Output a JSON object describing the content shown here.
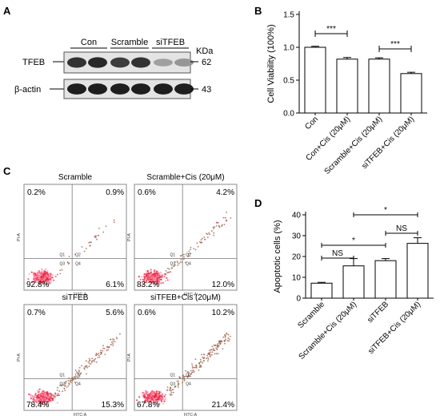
{
  "panel_labels": {
    "a": "A",
    "b": "B",
    "c": "C",
    "d": "D"
  },
  "western_blot": {
    "groups": [
      "Con",
      "Scramble",
      "siTFEB"
    ],
    "unit_label": "KDa",
    "proteins": [
      {
        "name": "TFEB",
        "kda": "62",
        "intensities": [
          0.85,
          0.9,
          0.8,
          0.85,
          0.3,
          0.35
        ]
      },
      {
        "name": "β-actin",
        "kda": "43",
        "intensities": [
          0.95,
          0.95,
          0.95,
          0.95,
          0.95,
          0.95
        ]
      }
    ]
  },
  "chart_data": [
    {
      "type": "bar",
      "panel": "B",
      "categories": [
        "Con",
        "Con+Cis (20μM)",
        "Scramble+Cis (20μM)",
        "siTFEB+Cis (20μM)"
      ],
      "values": [
        1.0,
        0.82,
        0.82,
        0.6
      ],
      "errors": [
        0.015,
        0.025,
        0.02,
        0.02
      ],
      "ylabel": "Cell Viability (100%)",
      "ylim": [
        0,
        1.5
      ],
      "yticks": [
        "0.0",
        "0.5",
        "1.0",
        "1.5"
      ],
      "significance": [
        {
          "from": 0,
          "to": 1,
          "label": "***"
        },
        {
          "from": 2,
          "to": 3,
          "label": "***"
        }
      ]
    },
    {
      "type": "bar",
      "panel": "D",
      "categories": [
        "Scramble",
        "Scramble+Cis (20μM)",
        "siTFEB",
        "siTFEB+Cis (20μM)"
      ],
      "values": [
        7.2,
        15.5,
        18.0,
        26.3
      ],
      "errors": [
        0.4,
        3.5,
        1.0,
        2.7
      ],
      "ylabel": "Apoptotic cells (%)",
      "ylim": [
        0,
        40
      ],
      "yticks": [
        "0",
        "10",
        "20",
        "30",
        "40"
      ],
      "significance": [
        {
          "from": 0,
          "to": 1,
          "label": "NS"
        },
        {
          "from": 0,
          "to": 2,
          "label": "*"
        },
        {
          "from": 2,
          "to": 3,
          "label": "NS"
        },
        {
          "from": 1,
          "to": 3,
          "label": "*"
        }
      ]
    }
  ],
  "flow_cytometry": {
    "plots": [
      {
        "title": "Scramble",
        "ul": "0.2%",
        "ur": "0.9%",
        "ll": "92.8%",
        "lr": "6.1%"
      },
      {
        "title": "Scramble+Cis (20μM)",
        "ul": "0.6%",
        "ur": "4.2%",
        "ll": "83.2%",
        "lr": "12.0%"
      },
      {
        "title": "siTFEB",
        "ul": "0.7%",
        "ur": "5.6%",
        "ll": "78.4%",
        "lr": "15.3%"
      },
      {
        "title": "siTFEB+Cis (20μM)",
        "ul": "0.6%",
        "ur": "10.2%",
        "ll": "67.8%",
        "lr": "21.4%"
      }
    ],
    "x_axis": "FITC-A",
    "y_axis": "PI-A",
    "gate_labels": [
      "Q1",
      "Q2",
      "Q3",
      "Q4"
    ]
  }
}
